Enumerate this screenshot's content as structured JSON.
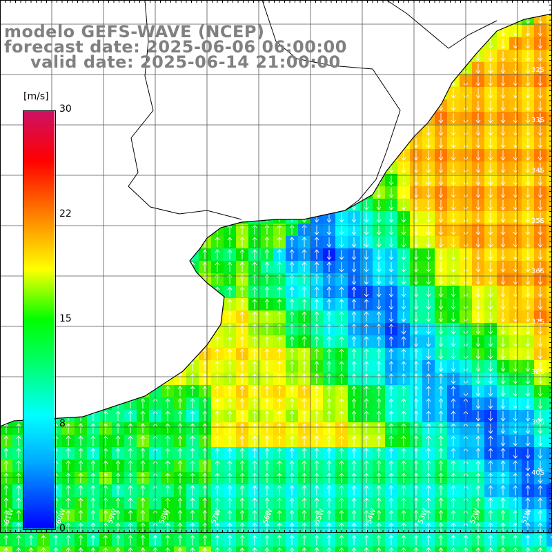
{
  "title": {
    "model": "modelo GEFS-WAVE (NCEP)",
    "forecast": "forecast date: 2025-06-06 06:00:00",
    "valid": "valid date: 2025-06-14 21:00:00"
  },
  "colorbar": {
    "unit": "[m/s]",
    "ticks": [
      "30",
      "22",
      "15",
      "8",
      "0"
    ],
    "stops": [
      "#0000ff",
      "#00aaff",
      "#00ffff",
      "#00ff00",
      "#ffff00",
      "#ff8000",
      "#ff0000",
      "#cc1166"
    ]
  },
  "map": {
    "lat_labels": [
      "32S",
      "33S",
      "34S",
      "35S",
      "36S",
      "37S",
      "38S",
      "39S",
      "40S"
    ],
    "lon_labels": [
      "61W",
      "60W",
      "59W",
      "58W",
      "57W",
      "56W",
      "55W",
      "54W",
      "53W",
      "52W",
      "51W"
    ],
    "land_color": "#ffffff",
    "wind_direction": "south-to-north over the shelf, north-to-south offshore"
  }
}
